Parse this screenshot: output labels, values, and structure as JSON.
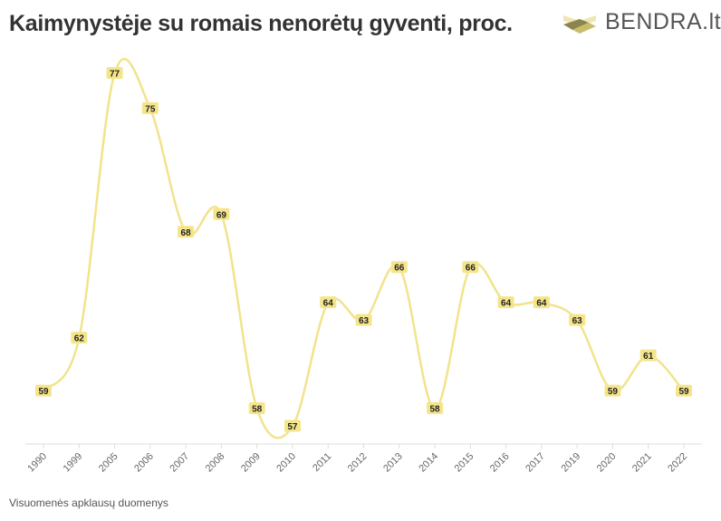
{
  "title": "Kaimynystėje su romais nenorėtų gyventi, proc.",
  "logo": {
    "text": "BENDRA.lt"
  },
  "source": "Visuomenės apklausų duomenys",
  "colors": {
    "line": "#f2e38c",
    "label_bg": "#f5e58a",
    "axis": "#ddd"
  },
  "chart_data": {
    "type": "line",
    "title": "Kaimynystėje su romais nenorėtų gyventi, proc.",
    "xlabel": "",
    "ylabel": "",
    "categories": [
      "1990",
      "1999",
      "2005",
      "2006",
      "2007",
      "2008",
      "2009",
      "2010",
      "2011",
      "2012",
      "2013",
      "2014",
      "2015",
      "2016",
      "2017",
      "2019",
      "2020",
      "2021",
      "2022"
    ],
    "values": [
      59,
      62,
      77,
      75,
      68,
      69,
      58,
      57,
      64,
      63,
      66,
      58,
      66,
      64,
      64,
      63,
      59,
      61,
      59
    ],
    "ylim": [
      56,
      78
    ],
    "grid": false,
    "data_labels": true
  }
}
